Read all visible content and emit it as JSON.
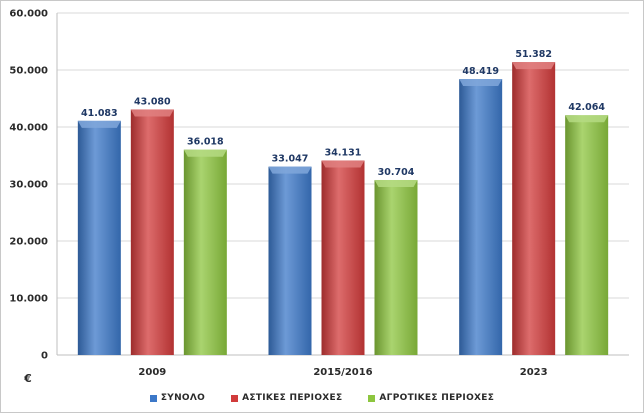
{
  "chart_data": {
    "type": "bar",
    "categories": [
      "2009",
      "2015/2016",
      "2023"
    ],
    "series": [
      {
        "name": "ΣΥΝΟΛΟ",
        "values": [
          41083,
          33047,
          48419
        ],
        "color": "#3c78c8",
        "labels": [
          "41.083",
          "33.047",
          "48.419"
        ]
      },
      {
        "name": "ΑΣΤΙΚΕΣ ΠΕΡΙΟΧΕΣ",
        "values": [
          43080,
          34131,
          51382
        ],
        "color": "#d13b3b",
        "labels": [
          "43.080",
          "34.131",
          "51.382"
        ]
      },
      {
        "name": "ΑΓΡΟΤΙΚΕΣ ΠΕΡΙΟΧΕΣ",
        "values": [
          36018,
          30704,
          42064
        ],
        "color": "#8dc63f",
        "labels": [
          "36.018",
          "30.704",
          "42.064"
        ]
      }
    ],
    "yticks": [
      "0",
      "10.000",
      "20.000",
      "30.000",
      "40.000",
      "50.000",
      "60.000"
    ],
    "ylim": [
      0,
      60000
    ],
    "yunit": "€",
    "grid": true,
    "legend_position": "bottom"
  }
}
